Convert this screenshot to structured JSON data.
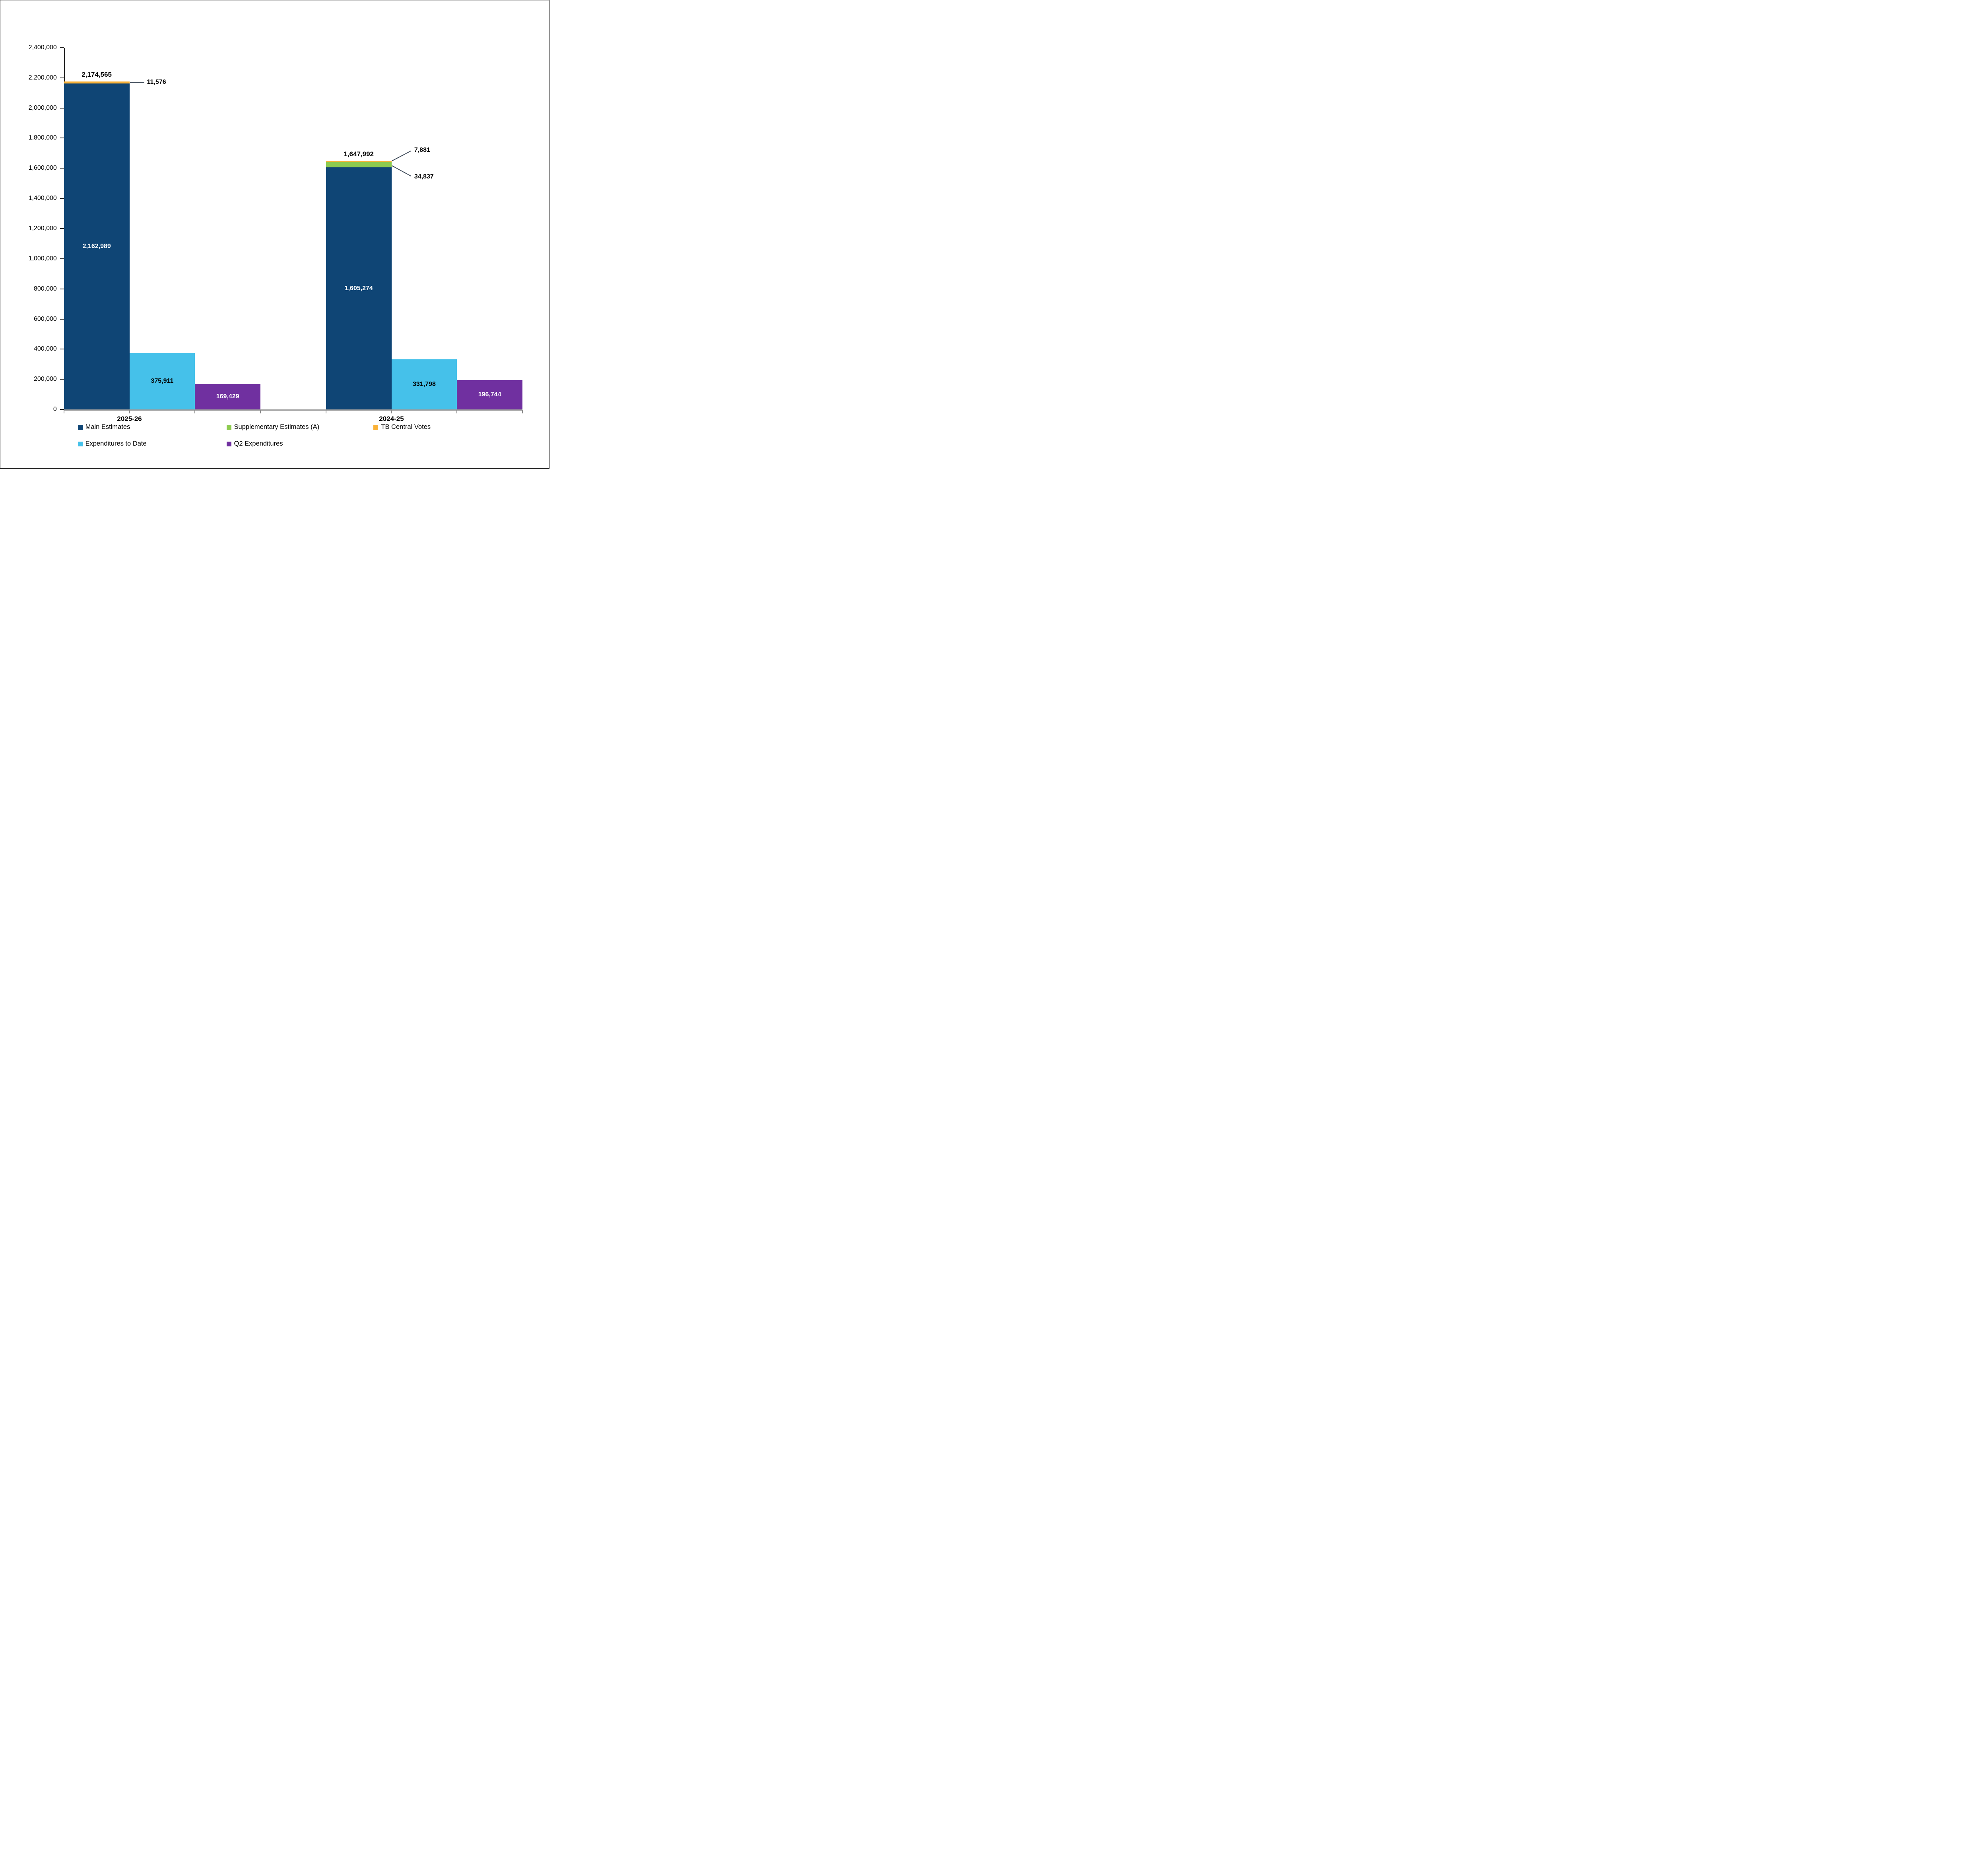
{
  "chart_data": {
    "type": "bar",
    "title": "",
    "categories": [
      "2025-26",
      "2024-25"
    ],
    "series": [
      {
        "name": "Main Estimates",
        "color": "#0F4575",
        "values": [
          2162989,
          1605274
        ]
      },
      {
        "name": "Supplementary Estimates (A)",
        "color": "#8DCB4F",
        "values": [
          0,
          34837
        ]
      },
      {
        "name": "TB Central Votes",
        "color": "#FAB238",
        "values": [
          11576,
          7881
        ]
      },
      {
        "name": "Expenditures to Date",
        "color": "#45C1EA",
        "values": [
          375911,
          331798
        ]
      },
      {
        "name": "Q2 Expenditures",
        "color": "#7030A0",
        "values": [
          169429,
          196744
        ]
      }
    ],
    "stack_totals": [
      2174565,
      1647992
    ],
    "xlabel": "",
    "ylabel": "",
    "ylim": [
      0,
      2400000
    ],
    "y_tick_interval": 200000,
    "grid": false,
    "legend_position": "bottom"
  },
  "y_axis": {
    "ticks": [
      "2,400,000",
      "2,200,000",
      "2,000,000",
      "1,800,000",
      "1,600,000",
      "1,400,000",
      "1,200,000",
      "1,000,000",
      "800,000",
      "600,000",
      "400,000",
      "200,000",
      "0"
    ]
  },
  "groups": [
    {
      "label": "2025-26",
      "main_value": "2,162,989",
      "total_value": "2,174,565",
      "tb_callout": "11,576",
      "expenditures_value": "375,911",
      "q2_value": "169,429"
    },
    {
      "label": "2024-25",
      "main_value": "1,605,274",
      "total_value": "1,647,992",
      "tb_callout": "7,881",
      "supp_callout": "34,837",
      "expenditures_value": "331,798",
      "q2_value": "196,744"
    }
  ],
  "legend": {
    "items": [
      {
        "label": "Main Estimates"
      },
      {
        "label": "Supplementary Estimates (A)"
      },
      {
        "label": "TB Central Votes"
      },
      {
        "label": "Expenditures to Date"
      },
      {
        "label": "Q2 Expenditures"
      }
    ]
  }
}
